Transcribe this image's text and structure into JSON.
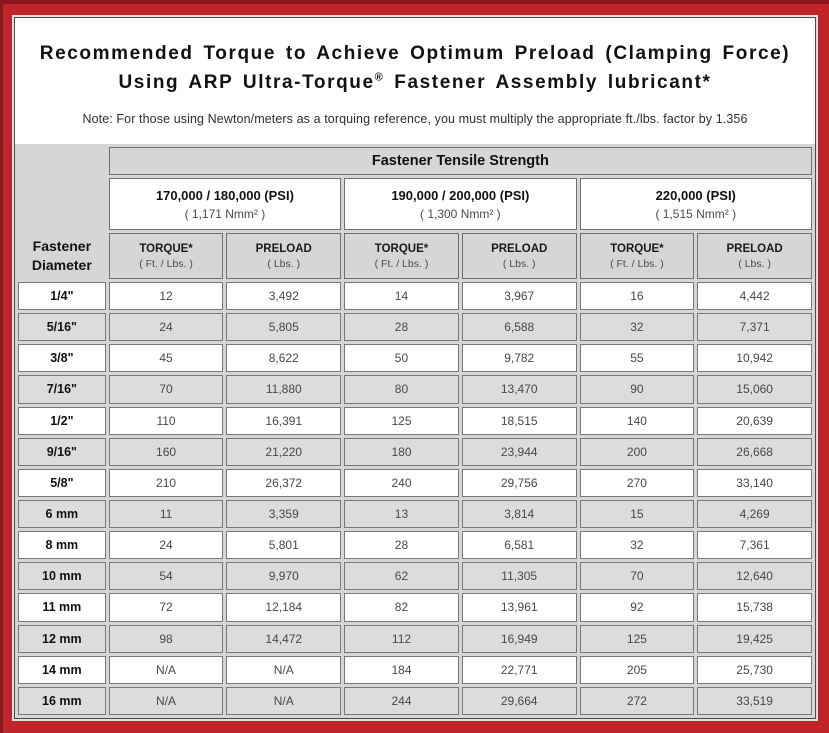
{
  "colors": {
    "frame_red": "#c0252c",
    "frame_maroon": "#8c161b",
    "row_shade_gray": "#dcdcdc",
    "header_gray": "#d6d6d6",
    "cell_border": "#787878"
  },
  "page": {
    "title_line1": "Recommended Torque to Achieve Optimum Preload (Clamping Force)",
    "title_line2_pre": "Using ARP Ultra-Torque",
    "title_line2_sup": "®",
    "title_line2_post": " Fastener Assembly lubricant*",
    "note": "Note: For those using Newton/meters as a torquing reference, you must multiply the appropriate ft./lbs. factor by 1.356"
  },
  "table": {
    "main_header": "Fastener Tensile Strength",
    "diameter_header_line1": "Fastener",
    "diameter_header_line2": "Diameter",
    "strength_groups": [
      {
        "psi": "170,000 / 180,000 (PSI)",
        "nmm": "( 1,171 Nmm² )"
      },
      {
        "psi": "190,000 / 200,000 (PSI)",
        "nmm": "( 1,300 Nmm² )"
      },
      {
        "psi": "220,000 (PSI)",
        "nmm": "( 1,515 Nmm² )"
      }
    ],
    "sub_headers": {
      "torque_label": "TORQUE*",
      "torque_unit": "( Ft. / Lbs. )",
      "preload_label": "PRELOAD",
      "preload_unit": "( Lbs. )"
    },
    "rows": [
      {
        "diameter": "1/4\"",
        "values": [
          "12",
          "3,492",
          "14",
          "3,967",
          "16",
          "4,442"
        ]
      },
      {
        "diameter": "5/16\"",
        "values": [
          "24",
          "5,805",
          "28",
          "6,588",
          "32",
          "7,371"
        ]
      },
      {
        "diameter": "3/8\"",
        "values": [
          "45",
          "8,622",
          "50",
          "9,782",
          "55",
          "10,942"
        ]
      },
      {
        "diameter": "7/16\"",
        "values": [
          "70",
          "11,880",
          "80",
          "13,470",
          "90",
          "15,060"
        ]
      },
      {
        "diameter": "1/2\"",
        "values": [
          "110",
          "16,391",
          "125",
          "18,515",
          "140",
          "20,639"
        ]
      },
      {
        "diameter": "9/16\"",
        "values": [
          "160",
          "21,220",
          "180",
          "23,944",
          "200",
          "26,668"
        ]
      },
      {
        "diameter": "5/8\"",
        "values": [
          "210",
          "26,372",
          "240",
          "29,756",
          "270",
          "33,140"
        ]
      },
      {
        "diameter": "6 mm",
        "values": [
          "11",
          "3,359",
          "13",
          "3,814",
          "15",
          "4,269"
        ]
      },
      {
        "diameter": "8 mm",
        "values": [
          "24",
          "5,801",
          "28",
          "6,581",
          "32",
          "7,361"
        ]
      },
      {
        "diameter": "10 mm",
        "values": [
          "54",
          "9,970",
          "62",
          "11,305",
          "70",
          "12,640"
        ]
      },
      {
        "diameter": "11 mm",
        "values": [
          "72",
          "12,184",
          "82",
          "13,961",
          "92",
          "15,738"
        ]
      },
      {
        "diameter": "12 mm",
        "values": [
          "98",
          "14,472",
          "112",
          "16,949",
          "125",
          "19,425"
        ]
      },
      {
        "diameter": "14 mm",
        "values": [
          "N/A",
          "N/A",
          "184",
          "22,771",
          "205",
          "25,730"
        ]
      },
      {
        "diameter": "16 mm",
        "values": [
          "N/A",
          "N/A",
          "244",
          "29,664",
          "272",
          "33,519"
        ]
      }
    ]
  }
}
